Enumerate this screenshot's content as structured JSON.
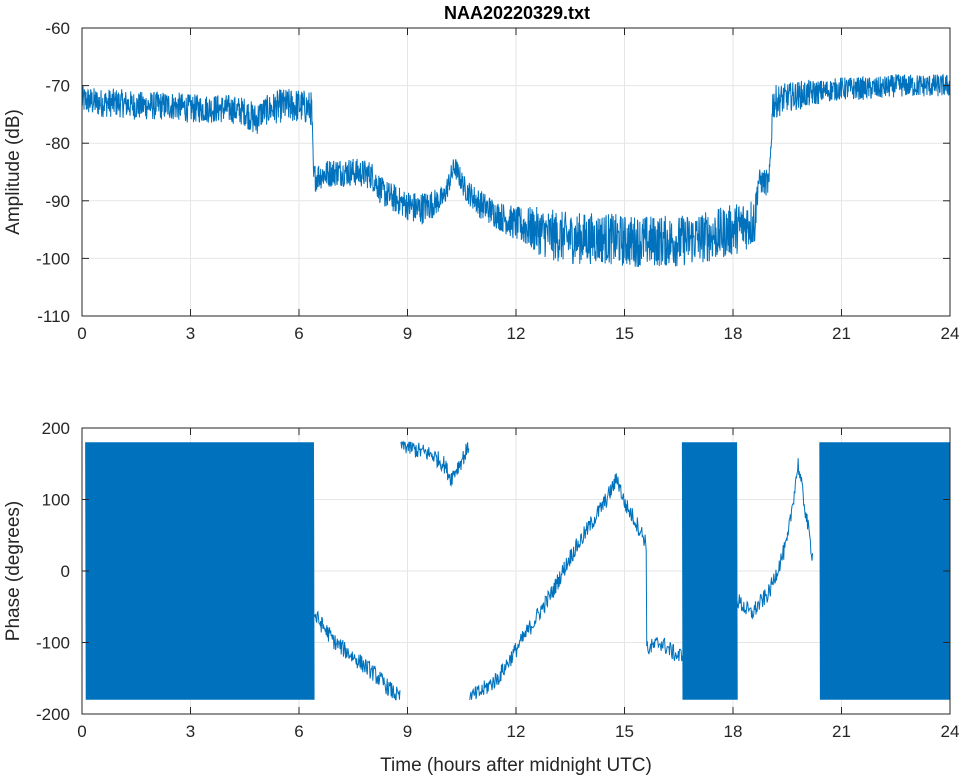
{
  "figure": {
    "title": "NAA20220329.txt"
  },
  "chart_data": [
    {
      "type": "line",
      "title": "NAA20220329.txt",
      "xlabel": "",
      "ylabel": "Amplitude (dB)",
      "xlim": [
        0,
        24
      ],
      "ylim": [
        -110,
        -60
      ],
      "xticks": [
        0,
        3,
        6,
        9,
        12,
        15,
        18,
        21,
        24
      ],
      "yticks": [
        -110,
        -100,
        -90,
        -80,
        -70,
        -60
      ],
      "grid": true,
      "series_color": "#0072BD",
      "series": [
        {
          "x": [
            0,
            0.5,
            1,
            1.5,
            2,
            2.5,
            3,
            3.5,
            4,
            4.5,
            4.8,
            5,
            5.5,
            6,
            6.35,
            6.4,
            6.6,
            7,
            7.5,
            8,
            8.3,
            8.6,
            8.9,
            9.3,
            9.7,
            10,
            10.3,
            10.6,
            11,
            11.5,
            12,
            12.5,
            13,
            13.5,
            14,
            14.5,
            15,
            15.5,
            16,
            16.5,
            17,
            17.5,
            18,
            18.6,
            18.7,
            19.0,
            19.1,
            19.5,
            20,
            20.5,
            21,
            21.5,
            22,
            22.5,
            23,
            23.5,
            24
          ],
          "y": [
            -72.5,
            -73,
            -73,
            -73.5,
            -73.5,
            -73.5,
            -74,
            -74,
            -74,
            -74.5,
            -76,
            -74.5,
            -73.5,
            -73.5,
            -74,
            -86,
            -85.5,
            -85,
            -85,
            -85.5,
            -88.5,
            -89.5,
            -90.5,
            -91.5,
            -90.5,
            -89.5,
            -84,
            -88,
            -90.5,
            -92.5,
            -94,
            -95,
            -96,
            -96.5,
            -96.5,
            -96.5,
            -97,
            -97,
            -97,
            -97,
            -96.5,
            -96,
            -95,
            -93.5,
            -86.5,
            -87,
            -73,
            -72,
            -71.5,
            -71,
            -70.5,
            -70.5,
            -70.5,
            -70,
            -70,
            -70,
            -70
          ],
          "spread": [
            2.5,
            2.5,
            2.5,
            2.5,
            2.5,
            2.5,
            2.5,
            2.5,
            2.5,
            2.5,
            3,
            2.5,
            3,
            3,
            3,
            2.5,
            2.5,
            2.5,
            2.5,
            2.5,
            2.5,
            2.5,
            2.5,
            3,
            2.5,
            2,
            2,
            2,
            2.5,
            2.5,
            3,
            4,
            4.5,
            4.5,
            4.5,
            4.5,
            4.5,
            4.5,
            4.5,
            4.5,
            4.5,
            4.5,
            4.5,
            4.5,
            2,
            2.5,
            3,
            2.5,
            2.5,
            2,
            2,
            2,
            2,
            2,
            2,
            2,
            2
          ]
        }
      ]
    },
    {
      "type": "line",
      "title": "",
      "xlabel": "Time (hours after midnight UTC)",
      "ylabel": "Phase (degrees)",
      "xlim": [
        0,
        24
      ],
      "ylim": [
        -200,
        200
      ],
      "xticks": [
        0,
        3,
        6,
        9,
        12,
        15,
        18,
        21,
        24
      ],
      "yticks": [
        -200,
        -100,
        0,
        100,
        200
      ],
      "grid": true,
      "series_color": "#0072BD",
      "series": [
        {
          "wrapped_blocks": [
            [
              0.1,
              6.4
            ],
            [
              16.6,
              18.1
            ],
            [
              20.4,
              24
            ]
          ],
          "wrapped_range": [
            -180,
            180
          ],
          "x": [
            6.4,
            7.0,
            7.5,
            8.0,
            8.5,
            8.8,
            8.8,
            9.2,
            9.7,
            10.0,
            10.2,
            10.5,
            10.7,
            10.7,
            11.0,
            11.5,
            12.0,
            12.5,
            13.0,
            13.5,
            14.0,
            14.5,
            14.8,
            15.0,
            15.3,
            15.6,
            15.6,
            16.0,
            16.5,
            18.1,
            18.5,
            19.0,
            19.5,
            19.8,
            20.2
          ],
          "y": [
            -60,
            -100,
            -120,
            -140,
            -165,
            -178,
            178,
            170,
            162,
            150,
            130,
            155,
            175,
            -178,
            -170,
            -150,
            -110,
            -70,
            -30,
            20,
            60,
            100,
            130,
            95,
            70,
            40,
            -110,
            -100,
            -120,
            -40,
            -60,
            -30,
            40,
            150,
            20
          ]
        }
      ]
    }
  ]
}
